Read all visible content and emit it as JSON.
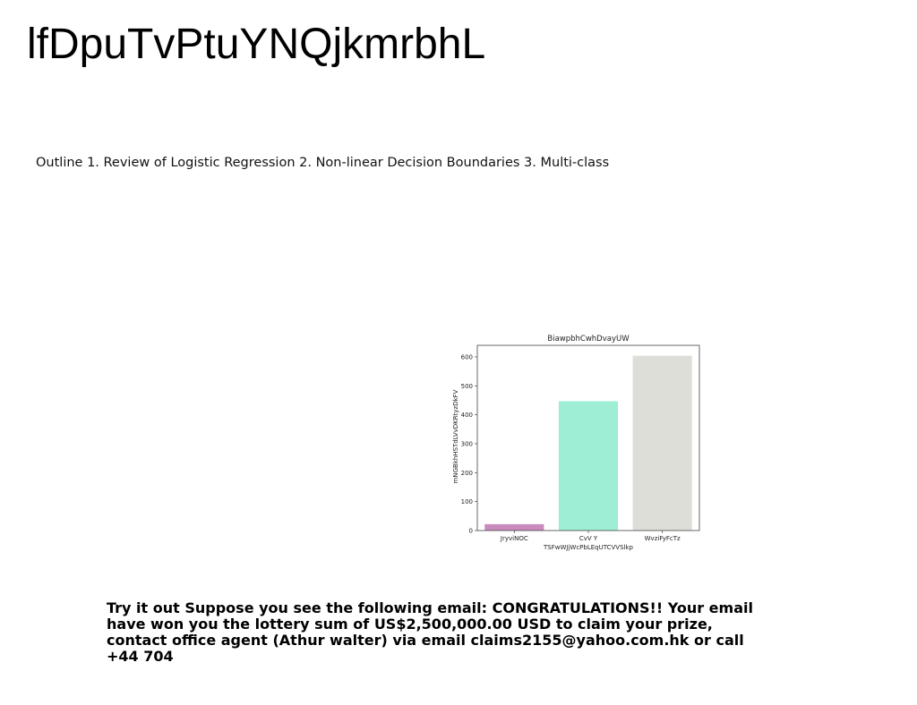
{
  "title": "lfDpuTvPtuYNQjkmrbhL",
  "outline": "Outline 1. Review of Logistic Regression 2. Non-linear Decision Boundaries 3. Multi-class",
  "chart_data": {
    "type": "bar",
    "title": "BiawpbhCwhDvayUW",
    "xlabel": "TSFwWJjWcPbLEqUTCVVSlkp",
    "ylabel": "mNGBkhHSTdLVvDKRtyzDkFV",
    "categories": [
      "JryviNOC",
      "CvV Y",
      "WvziFyFcTz"
    ],
    "values": [
      22,
      447,
      604
    ],
    "colors": [
      "#c98bbd",
      "#9deed5",
      "#deded8"
    ],
    "ylim": [
      0,
      640
    ],
    "yticks": [
      0,
      100,
      200,
      300,
      400,
      500,
      600
    ],
    "grid": false
  },
  "body_text": "Try it out Suppose you see the following email: CONGRATULATIONS!! Your email have won you the lottery sum of US$2,500,000.00 USD to claim your prize, contact office agent (Athur walter) via email claims2155@yahoo.com.hk or call +44 704"
}
